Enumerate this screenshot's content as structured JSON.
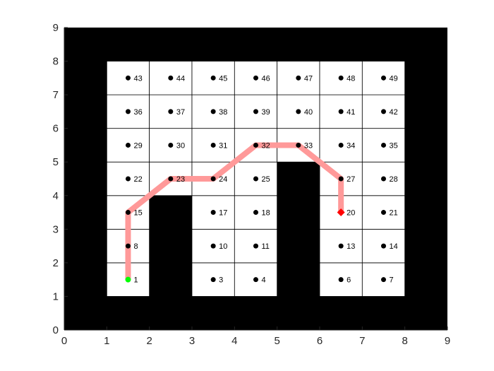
{
  "chart_data": {
    "type": "grid-map",
    "xlim": [
      0,
      9
    ],
    "ylim": [
      0,
      9
    ],
    "xticks": [
      "0",
      "1",
      "2",
      "3",
      "4",
      "5",
      "6",
      "7",
      "8",
      "9"
    ],
    "yticks": [
      "0",
      "1",
      "2",
      "3",
      "4",
      "5",
      "6",
      "7",
      "8",
      "9"
    ],
    "grid": {
      "cols": 7,
      "rows": 7,
      "origin": [
        1,
        1
      ],
      "cell_size": 1
    },
    "free_cells": [
      [
        1,
        1
      ],
      [
        3,
        1
      ],
      [
        4,
        1
      ],
      [
        6,
        1
      ],
      [
        7,
        1
      ],
      [
        1,
        2
      ],
      [
        3,
        2
      ],
      [
        4,
        2
      ],
      [
        6,
        2
      ],
      [
        7,
        2
      ],
      [
        1,
        3
      ],
      [
        3,
        3
      ],
      [
        4,
        3
      ],
      [
        6,
        3
      ],
      [
        7,
        3
      ],
      [
        1,
        4
      ],
      [
        2,
        4
      ],
      [
        3,
        4
      ],
      [
        4,
        4
      ],
      [
        6,
        4
      ],
      [
        7,
        4
      ],
      [
        1,
        5
      ],
      [
        2,
        5
      ],
      [
        3,
        5
      ],
      [
        4,
        5
      ],
      [
        5,
        5
      ],
      [
        6,
        5
      ],
      [
        7,
        5
      ],
      [
        1,
        6
      ],
      [
        2,
        6
      ],
      [
        3,
        6
      ],
      [
        4,
        6
      ],
      [
        5,
        6
      ],
      [
        6,
        6
      ],
      [
        7,
        6
      ],
      [
        1,
        7
      ],
      [
        2,
        7
      ],
      [
        3,
        7
      ],
      [
        4,
        7
      ],
      [
        5,
        7
      ],
      [
        6,
        7
      ],
      [
        7,
        7
      ]
    ],
    "nodes": [
      {
        "label": "1",
        "x": 1.5,
        "y": 1.5
      },
      {
        "label": "3",
        "x": 3.5,
        "y": 1.5
      },
      {
        "label": "4",
        "x": 4.5,
        "y": 1.5
      },
      {
        "label": "6",
        "x": 6.5,
        "y": 1.5
      },
      {
        "label": "7",
        "x": 7.5,
        "y": 1.5
      },
      {
        "label": "8",
        "x": 1.5,
        "y": 2.5
      },
      {
        "label": "10",
        "x": 3.5,
        "y": 2.5
      },
      {
        "label": "11",
        "x": 4.5,
        "y": 2.5
      },
      {
        "label": "13",
        "x": 6.5,
        "y": 2.5
      },
      {
        "label": "14",
        "x": 7.5,
        "y": 2.5
      },
      {
        "label": "15",
        "x": 1.5,
        "y": 3.5
      },
      {
        "label": "17",
        "x": 3.5,
        "y": 3.5
      },
      {
        "label": "18",
        "x": 4.5,
        "y": 3.5
      },
      {
        "label": "20",
        "x": 6.5,
        "y": 3.5
      },
      {
        "label": "21",
        "x": 7.5,
        "y": 3.5
      },
      {
        "label": "22",
        "x": 1.5,
        "y": 4.5
      },
      {
        "label": "23",
        "x": 2.5,
        "y": 4.5
      },
      {
        "label": "24",
        "x": 3.5,
        "y": 4.5
      },
      {
        "label": "25",
        "x": 4.5,
        "y": 4.5
      },
      {
        "label": "27",
        "x": 6.5,
        "y": 4.5
      },
      {
        "label": "28",
        "x": 7.5,
        "y": 4.5
      },
      {
        "label": "29",
        "x": 1.5,
        "y": 5.5
      },
      {
        "label": "30",
        "x": 2.5,
        "y": 5.5
      },
      {
        "label": "31",
        "x": 3.5,
        "y": 5.5
      },
      {
        "label": "32",
        "x": 4.5,
        "y": 5.5
      },
      {
        "label": "33",
        "x": 5.5,
        "y": 5.5
      },
      {
        "label": "34",
        "x": 6.5,
        "y": 5.5
      },
      {
        "label": "35",
        "x": 7.5,
        "y": 5.5
      },
      {
        "label": "36",
        "x": 1.5,
        "y": 6.5
      },
      {
        "label": "37",
        "x": 2.5,
        "y": 6.5
      },
      {
        "label": "38",
        "x": 3.5,
        "y": 6.5
      },
      {
        "label": "39",
        "x": 4.5,
        "y": 6.5
      },
      {
        "label": "40",
        "x": 5.5,
        "y": 6.5
      },
      {
        "label": "41",
        "x": 6.5,
        "y": 6.5
      },
      {
        "label": "42",
        "x": 7.5,
        "y": 6.5
      },
      {
        "label": "43",
        "x": 1.5,
        "y": 7.5
      },
      {
        "label": "44",
        "x": 2.5,
        "y": 7.5
      },
      {
        "label": "45",
        "x": 3.5,
        "y": 7.5
      },
      {
        "label": "46",
        "x": 4.5,
        "y": 7.5
      },
      {
        "label": "47",
        "x": 5.5,
        "y": 7.5
      },
      {
        "label": "48",
        "x": 6.5,
        "y": 7.5
      },
      {
        "label": "49",
        "x": 7.5,
        "y": 7.5
      }
    ],
    "path": [
      [
        1.5,
        1.5
      ],
      [
        1.5,
        3.5
      ],
      [
        2.5,
        4.5
      ],
      [
        3.5,
        4.5
      ],
      [
        4.5,
        5.5
      ],
      [
        5.5,
        5.5
      ],
      [
        6.5,
        4.5
      ],
      [
        6.5,
        3.5
      ]
    ],
    "start": {
      "x": 1.5,
      "y": 1.5
    },
    "goal": {
      "x": 6.5,
      "y": 3.5
    },
    "colors": {
      "obstacle": "#000000",
      "free": "#ffffff",
      "gridline": "#000000",
      "path": "#ff9999",
      "node": "#000000",
      "start": "#00ff00",
      "goal": "#ff0000",
      "axis": "#262626"
    }
  }
}
